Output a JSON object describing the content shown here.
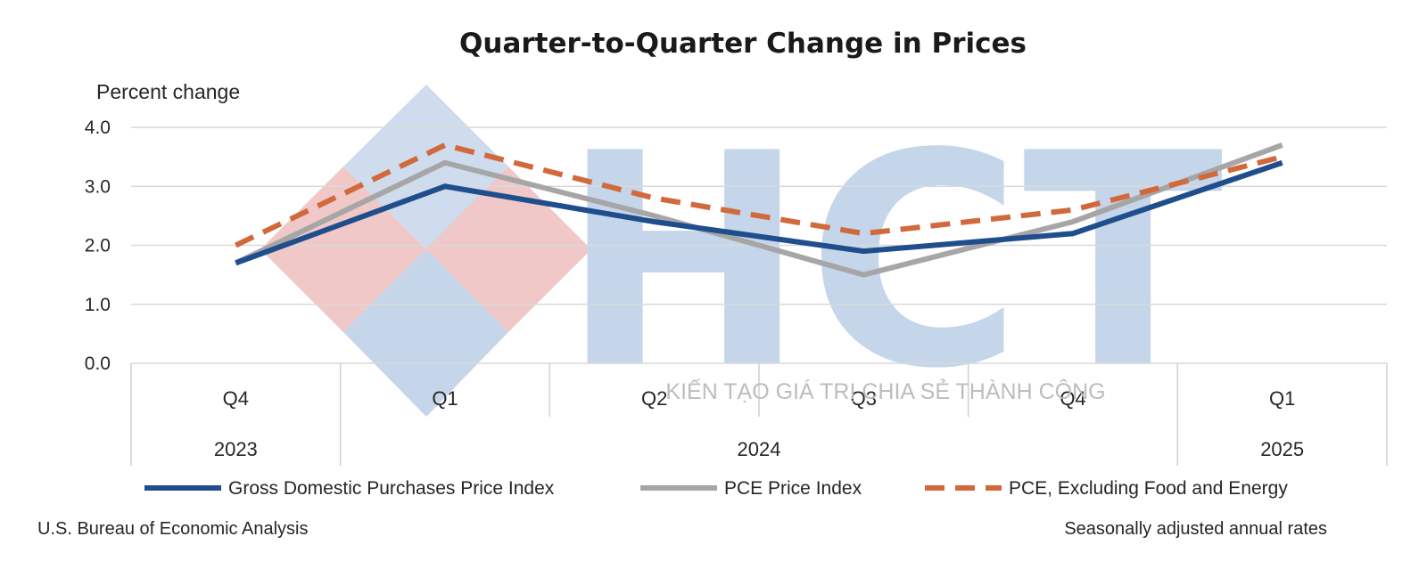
{
  "chart_data": {
    "type": "line",
    "title": "Quarter-to-Quarter Change in Prices",
    "ylabel": "Percent change",
    "ylim": [
      0,
      4
    ],
    "yticks": [
      "0.0",
      "1.0",
      "2.0",
      "3.0",
      "4.0"
    ],
    "categories": [
      "Q4",
      "Q1",
      "Q2",
      "Q3",
      "Q4",
      "Q1"
    ],
    "years": [
      {
        "label": "2023",
        "span": 1
      },
      {
        "label": "2024",
        "span": 4
      },
      {
        "label": "2025",
        "span": 1
      }
    ],
    "series": [
      {
        "name": "Gross Domestic Purchases Price Index",
        "values": [
          1.7,
          3.0,
          2.4,
          1.9,
          2.2,
          3.4
        ],
        "color": "#1f4e8c",
        "dash": "solid"
      },
      {
        "name": "PCE Price Index",
        "values": [
          1.7,
          3.4,
          2.5,
          1.5,
          2.4,
          3.7
        ],
        "color": "#a6a6a6",
        "dash": "solid"
      },
      {
        "name": "PCE, Excluding Food and Energy",
        "values": [
          2.0,
          3.7,
          2.8,
          2.2,
          2.6,
          3.5
        ],
        "color": "#d2693c",
        "dash": "dashed"
      }
    ],
    "grid": true,
    "legend": "bottom"
  },
  "footer": {
    "source": "U.S. Bureau of Economic Analysis",
    "note": "Seasonally adjusted annual rates"
  },
  "watermark": {
    "text": "HCT",
    "tagline": "KIẾN TẠO GIÁ TRỊ CHIA SẺ THÀNH CÔNG",
    "colors": {
      "blue": "#c5d6ea",
      "red": "#f0c8c8"
    }
  }
}
